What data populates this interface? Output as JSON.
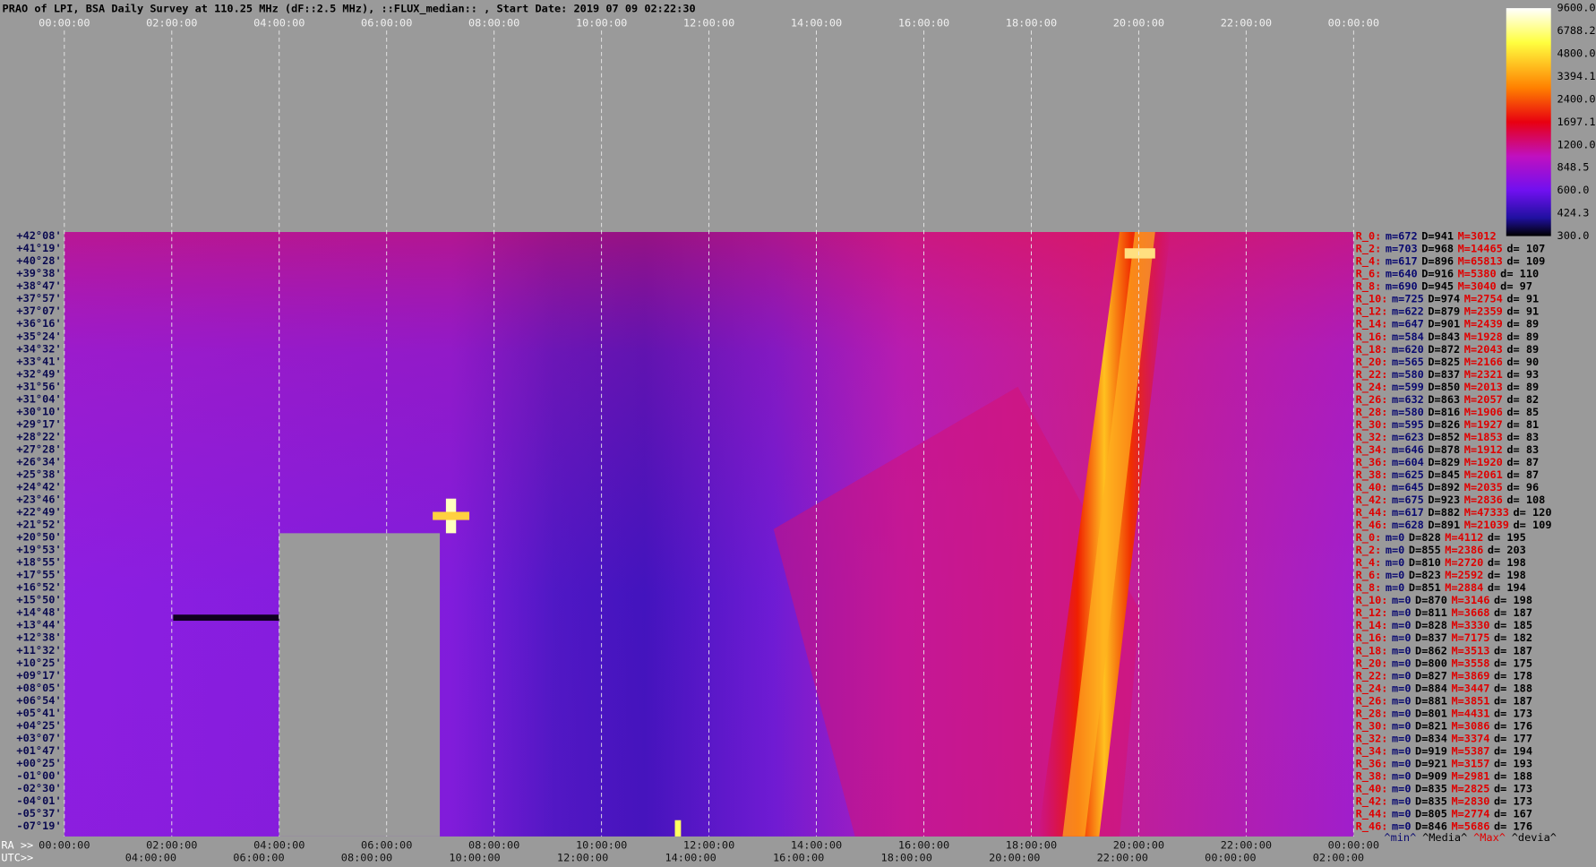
{
  "header": {
    "title": "PRAO of LPI, BSA Daily Survey at 110.25 MHz (dF::2.5 MHz), ::FLUX_median:: , Start Date: 2019 07 09 02:22:30"
  },
  "top_axis": [
    "00:00:00",
    "02:00:00",
    "04:00:00",
    "06:00:00",
    "08:00:00",
    "10:00:00",
    "12:00:00",
    "14:00:00",
    "16:00:00",
    "18:00:00",
    "20:00:00",
    "22:00:00",
    "00:00:00"
  ],
  "ra_axis": {
    "label": "RA >>",
    "ticks": [
      "00:00:00",
      "02:00:00",
      "04:00:00",
      "06:00:00",
      "08:00:00",
      "10:00:00",
      "12:00:00",
      "14:00:00",
      "16:00:00",
      "18:00:00",
      "20:00:00",
      "22:00:00",
      "00:00:00"
    ]
  },
  "utc_axis": {
    "label": "UTC>>",
    "ticks": [
      "04:00:00",
      "06:00:00",
      "08:00:00",
      "10:00:00",
      "12:00:00",
      "14:00:00",
      "16:00:00",
      "18:00:00",
      "20:00:00",
      "22:00:00",
      "00:00:00",
      "02:00:00"
    ]
  },
  "declinations": [
    "+42°08'",
    "+41°19'",
    "+40°28'",
    "+39°38'",
    "+38°47'",
    "+37°57'",
    "+37°07'",
    "+36°16'",
    "+35°24'",
    "+34°32'",
    "+33°41'",
    "+32°49'",
    "+31°56'",
    "+31°04'",
    "+30°10'",
    "+29°17'",
    "+28°22'",
    "+27°28'",
    "+26°34'",
    "+25°38'",
    "+24°42'",
    "+23°46'",
    "+22°49'",
    "+21°52'",
    "+20°50'",
    "+19°53'",
    "+18°55'",
    "+17°55'",
    "+16°52'",
    "+15°50'",
    "+14°48'",
    "+13°44'",
    "+12°38'",
    "+11°32'",
    "+10°25'",
    "+09°17'",
    "+08°05'",
    "+06°54'",
    "+05°41'",
    "+04°25'",
    "+03°07'",
    "+01°47'",
    "+00°25'",
    "-01°00'",
    "-02°30'",
    "-04°01'",
    "-05°37'",
    "-07°19'"
  ],
  "colorbar": [
    "9600.0",
    "6788.2",
    "4800.0",
    "3394.1",
    "2400.0",
    "1697.1",
    "1200.0",
    "848.5",
    "600.0",
    "424.3",
    "300.0"
  ],
  "stats": [
    [
      "R_0:",
      "m=672",
      "D=941",
      "M=3012"
    ],
    [
      "R_2:",
      "m=703",
      "D=968",
      "M=14465",
      "d= 107"
    ],
    [
      "R_4:",
      "m=617",
      "D=896",
      "M=65813",
      "d= 109"
    ],
    [
      "R_6:",
      "m=640",
      "D=916",
      "M=5380",
      "d= 110"
    ],
    [
      "R_8:",
      "m=690",
      "D=945",
      "M=3040",
      "d= 97"
    ],
    [
      "R_10:",
      "m=725",
      "D=974",
      "M=2754",
      "d= 91"
    ],
    [
      "R_12:",
      "m=622",
      "D=879",
      "M=2359",
      "d= 91"
    ],
    [
      "R_14:",
      "m=647",
      "D=901",
      "M=2439",
      "d= 89"
    ],
    [
      "R_16:",
      "m=584",
      "D=843",
      "M=1928",
      "d= 89"
    ],
    [
      "R_18:",
      "m=620",
      "D=872",
      "M=2043",
      "d= 89"
    ],
    [
      "R_20:",
      "m=565",
      "D=825",
      "M=2166",
      "d= 90"
    ],
    [
      "R_22:",
      "m=580",
      "D=837",
      "M=2321",
      "d= 93"
    ],
    [
      "R_24:",
      "m=599",
      "D=850",
      "M=2013",
      "d= 89"
    ],
    [
      "R_26:",
      "m=632",
      "D=863",
      "M=2057",
      "d= 82"
    ],
    [
      "R_28:",
      "m=580",
      "D=816",
      "M=1906",
      "d= 85"
    ],
    [
      "R_30:",
      "m=595",
      "D=826",
      "M=1927",
      "d= 81"
    ],
    [
      "R_32:",
      "m=623",
      "D=852",
      "M=1853",
      "d= 83"
    ],
    [
      "R_34:",
      "m=646",
      "D=878",
      "M=1912",
      "d= 83"
    ],
    [
      "R_36:",
      "m=604",
      "D=829",
      "M=1920",
      "d= 87"
    ],
    [
      "R_38:",
      "m=625",
      "D=845",
      "M=2061",
      "d= 87"
    ],
    [
      "R_40:",
      "m=645",
      "D=892",
      "M=2035",
      "d= 96"
    ],
    [
      "R_42:",
      "m=675",
      "D=923",
      "M=2836",
      "d= 108"
    ],
    [
      "R_44:",
      "m=617",
      "D=882",
      "M=47333",
      "d= 120"
    ],
    [
      "R_46:",
      "m=628",
      "D=891",
      "M=21039",
      "d= 109"
    ],
    [
      "R_0:",
      "m=0",
      "D=828",
      "M=4112",
      "d= 195"
    ],
    [
      "R_2:",
      "m=0",
      "D=855",
      "M=2386",
      "d= 203"
    ],
    [
      "R_4:",
      "m=0",
      "D=810",
      "M=2720",
      "d= 198"
    ],
    [
      "R_6:",
      "m=0",
      "D=823",
      "M=2592",
      "d= 198"
    ],
    [
      "R_8:",
      "m=0",
      "D=851",
      "M=2884",
      "d= 194"
    ],
    [
      "R_10:",
      "m=0",
      "D=870",
      "M=3146",
      "d= 198"
    ],
    [
      "R_12:",
      "m=0",
      "D=811",
      "M=3668",
      "d= 187"
    ],
    [
      "R_14:",
      "m=0",
      "D=828",
      "M=3330",
      "d= 185"
    ],
    [
      "R_16:",
      "m=0",
      "D=837",
      "M=7175",
      "d= 182"
    ],
    [
      "R_18:",
      "m=0",
      "D=862",
      "M=3513",
      "d= 187"
    ],
    [
      "R_20:",
      "m=0",
      "D=800",
      "M=3558",
      "d= 175"
    ],
    [
      "R_22:",
      "m=0",
      "D=827",
      "M=3869",
      "d= 178"
    ],
    [
      "R_24:",
      "m=0",
      "D=884",
      "M=3447",
      "d= 188"
    ],
    [
      "R_26:",
      "m=0",
      "D=881",
      "M=3851",
      "d= 187"
    ],
    [
      "R_28:",
      "m=0",
      "D=801",
      "M=4431",
      "d= 173"
    ],
    [
      "R_30:",
      "m=0",
      "D=821",
      "M=3086",
      "d= 176"
    ],
    [
      "R_32:",
      "m=0",
      "D=834",
      "M=3374",
      "d= 177"
    ],
    [
      "R_34:",
      "m=0",
      "D=919",
      "M=5387",
      "d= 194"
    ],
    [
      "R_36:",
      "m=0",
      "D=921",
      "M=3157",
      "d= 193"
    ],
    [
      "R_38:",
      "m=0",
      "D=909",
      "M=2981",
      "d= 188"
    ],
    [
      "R_40:",
      "m=0",
      "D=835",
      "M=2825",
      "d= 173"
    ],
    [
      "R_42:",
      "m=0",
      "D=835",
      "M=2830",
      "d= 173"
    ],
    [
      "R_44:",
      "m=0",
      "D=805",
      "M=2774",
      "d= 167"
    ],
    [
      "R_46:",
      "m=0",
      "D=846",
      "M=5686",
      "d= 176"
    ]
  ],
  "stats_footer": [
    "^min^",
    "^Media^",
    "^Max^",
    "^devia^"
  ]
}
